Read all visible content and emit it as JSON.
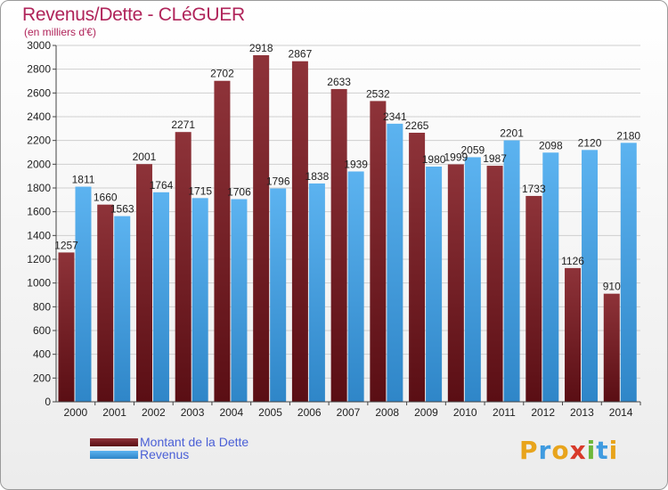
{
  "chart_data": {
    "type": "bar",
    "title": "Revenus/Dette - CLéGUER",
    "subtitle": "(en milliers d'€)",
    "categories": [
      "2000",
      "2001",
      "2002",
      "2003",
      "2004",
      "2005",
      "2006",
      "2007",
      "2008",
      "2009",
      "2010",
      "2011",
      "2012",
      "2013",
      "2014"
    ],
    "series": [
      {
        "name": "Montant de la Dette",
        "color": "#7a1c24",
        "values": [
          1257,
          1660,
          2001,
          2271,
          2702,
          2918,
          2867,
          2633,
          2532,
          2265,
          1999,
          1987,
          1733,
          1126,
          910
        ]
      },
      {
        "name": "Revenus",
        "color": "#4aa3e6",
        "values": [
          1811,
          1563,
          1764,
          1715,
          1706,
          1796,
          1838,
          1939,
          2341,
          1980,
          2059,
          2201,
          2098,
          2120,
          2180
        ]
      }
    ],
    "labels": [
      [
        "1257",
        "1660",
        "2001",
        "2271",
        "2702",
        "2918",
        "2867",
        "2633",
        "2532",
        "2265",
        "1999",
        "1987",
        "1733",
        "1126",
        "910"
      ],
      [
        "1811",
        "1563",
        "1764",
        "1715",
        "1706",
        "1796",
        "1838",
        "1939",
        "2341",
        "1980",
        "2059",
        "2201",
        "2098",
        "2120",
        "2180"
      ]
    ],
    "yticks": [
      "0",
      "200",
      "400",
      "600",
      "800",
      "1000",
      "1200",
      "1400",
      "1600",
      "1800",
      "2000",
      "2200",
      "2400",
      "2600",
      "2800",
      "3000"
    ],
    "ylim": [
      0,
      3000
    ],
    "xlabel": "",
    "ylabel": "",
    "grid": true,
    "legend_position": "bottom-left"
  },
  "legend": {
    "debt": "Montant de la Dette",
    "revenue": "Revenus"
  },
  "logo": {
    "letters": [
      "P",
      "r",
      "o",
      "x",
      "i",
      "t",
      "i"
    ],
    "colors": [
      "#e8a41c",
      "#3f9be0",
      "#e8a41c",
      "#d83a2a",
      "#6cb83a",
      "#3f9be0",
      "#e8a41c"
    ]
  }
}
